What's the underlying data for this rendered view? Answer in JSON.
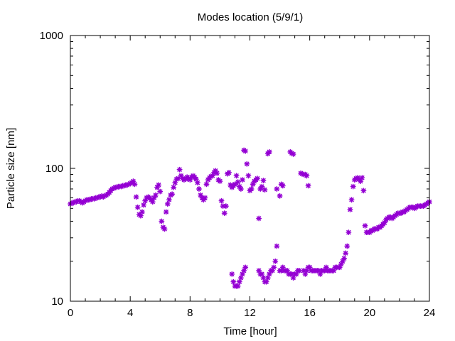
{
  "chart_data": {
    "type": "scatter",
    "title": "Modes location (5/9/1)",
    "xlabel": "Time [hour]",
    "ylabel": "Particle size [nm]",
    "xlim": [
      0,
      24
    ],
    "ylim": [
      10,
      1000
    ],
    "yscale": "log",
    "grid": false,
    "legend": "none",
    "marker": "asterisk",
    "colors": {
      "series": "#9400d3",
      "axis": "#000000",
      "background": "#ffffff"
    },
    "x_ticks": [
      "0",
      "4",
      "8",
      "12",
      "16",
      "20",
      "24"
    ],
    "y_ticks": [
      "10",
      "100",
      "1000"
    ],
    "series": [
      {
        "points": [
          [
            0.0,
            54
          ],
          [
            0.1,
            55
          ],
          [
            0.2,
            55
          ],
          [
            0.3,
            56
          ],
          [
            0.4,
            56
          ],
          [
            0.5,
            57
          ],
          [
            0.6,
            57
          ],
          [
            0.7,
            56
          ],
          [
            0.8,
            55
          ],
          [
            0.9,
            56
          ],
          [
            1.0,
            57
          ],
          [
            1.1,
            58
          ],
          [
            1.2,
            58
          ],
          [
            1.3,
            58
          ],
          [
            1.4,
            59
          ],
          [
            1.5,
            59
          ],
          [
            1.6,
            59
          ],
          [
            1.7,
            60
          ],
          [
            1.8,
            60
          ],
          [
            1.9,
            61
          ],
          [
            2.0,
            61
          ],
          [
            2.1,
            62
          ],
          [
            2.2,
            61
          ],
          [
            2.3,
            62
          ],
          [
            2.4,
            63
          ],
          [
            2.5,
            64
          ],
          [
            2.6,
            66
          ],
          [
            2.7,
            68
          ],
          [
            2.8,
            70
          ],
          [
            2.9,
            71
          ],
          [
            3.0,
            72
          ],
          [
            3.1,
            72
          ],
          [
            3.2,
            73
          ],
          [
            3.3,
            73
          ],
          [
            3.4,
            73
          ],
          [
            3.5,
            74
          ],
          [
            3.6,
            74
          ],
          [
            3.7,
            75
          ],
          [
            3.8,
            75
          ],
          [
            3.9,
            76
          ],
          [
            4.0,
            77
          ],
          [
            4.1,
            78
          ],
          [
            4.2,
            80
          ],
          [
            4.3,
            76
          ],
          [
            4.4,
            61
          ],
          [
            4.5,
            51
          ],
          [
            4.6,
            45
          ],
          [
            4.7,
            44
          ],
          [
            4.8,
            47
          ],
          [
            4.9,
            53
          ],
          [
            5.0,
            57
          ],
          [
            5.1,
            60
          ],
          [
            5.2,
            61
          ],
          [
            5.3,
            60
          ],
          [
            5.4,
            58
          ],
          [
            5.5,
            56
          ],
          [
            5.6,
            60
          ],
          [
            5.7,
            63
          ],
          [
            5.8,
            72
          ],
          [
            5.9,
            75
          ],
          [
            6.0,
            67
          ],
          [
            6.1,
            40
          ],
          [
            6.2,
            36
          ],
          [
            6.3,
            35
          ],
          [
            6.4,
            47
          ],
          [
            6.5,
            54
          ],
          [
            6.6,
            58
          ],
          [
            6.7,
            63
          ],
          [
            6.8,
            64
          ],
          [
            6.9,
            72
          ],
          [
            7.0,
            78
          ],
          [
            7.1,
            83
          ],
          [
            7.2,
            84
          ],
          [
            7.3,
            98
          ],
          [
            7.4,
            88
          ],
          [
            7.5,
            84
          ],
          [
            7.6,
            82
          ],
          [
            7.7,
            83
          ],
          [
            7.8,
            86
          ],
          [
            7.9,
            84
          ],
          [
            8.0,
            82
          ],
          [
            8.1,
            86
          ],
          [
            8.2,
            88
          ],
          [
            8.3,
            86
          ],
          [
            8.4,
            83
          ],
          [
            8.5,
            78
          ],
          [
            8.6,
            70
          ],
          [
            8.7,
            63
          ],
          [
            8.8,
            60
          ],
          [
            8.9,
            58
          ],
          [
            9.0,
            60
          ],
          [
            9.1,
            76
          ],
          [
            9.2,
            82
          ],
          [
            9.3,
            85
          ],
          [
            9.4,
            87
          ],
          [
            9.5,
            88
          ],
          [
            9.6,
            93
          ],
          [
            9.7,
            96
          ],
          [
            9.8,
            92
          ],
          [
            9.9,
            82
          ],
          [
            10.0,
            80
          ],
          [
            10.1,
            57
          ],
          [
            10.2,
            52
          ],
          [
            10.3,
            46
          ],
          [
            10.4,
            52
          ],
          [
            10.5,
            91
          ],
          [
            10.6,
            93
          ],
          [
            10.7,
            75
          ],
          [
            10.8,
            72
          ],
          [
            10.9,
            74
          ],
          [
            11.0,
            76
          ],
          [
            11.1,
            88
          ],
          [
            11.2,
            79
          ],
          [
            11.3,
            73
          ],
          [
            11.4,
            70
          ],
          [
            11.5,
            82
          ],
          [
            11.6,
            137
          ],
          [
            11.7,
            135
          ],
          [
            11.8,
            108
          ],
          [
            11.9,
            88
          ],
          [
            12.0,
            68
          ],
          [
            12.1,
            70
          ],
          [
            12.2,
            76
          ],
          [
            12.3,
            80
          ],
          [
            12.4,
            82
          ],
          [
            12.5,
            84
          ],
          [
            12.6,
            42
          ],
          [
            12.7,
            70
          ],
          [
            12.8,
            73
          ],
          [
            12.9,
            81
          ],
          [
            13.0,
            69
          ],
          [
            13.2,
            129
          ],
          [
            13.3,
            133
          ],
          [
            13.8,
            70
          ],
          [
            14.0,
            62
          ],
          [
            14.1,
            76
          ],
          [
            14.2,
            74
          ],
          [
            14.7,
            133
          ],
          [
            14.8,
            130
          ],
          [
            14.9,
            128
          ],
          [
            15.4,
            92
          ],
          [
            15.5,
            91
          ],
          [
            15.6,
            90
          ],
          [
            15.7,
            90
          ],
          [
            15.8,
            88
          ],
          [
            15.9,
            74
          ],
          [
            10.8,
            16
          ],
          [
            10.9,
            14
          ],
          [
            11.0,
            13
          ],
          [
            11.1,
            13
          ],
          [
            11.2,
            13
          ],
          [
            11.3,
            14
          ],
          [
            11.4,
            15
          ],
          [
            11.5,
            16
          ],
          [
            11.6,
            17
          ],
          [
            11.7,
            18
          ],
          [
            12.6,
            17
          ],
          [
            12.7,
            16
          ],
          [
            12.8,
            16
          ],
          [
            12.9,
            15
          ],
          [
            13.0,
            14
          ],
          [
            13.1,
            14
          ],
          [
            13.2,
            15
          ],
          [
            13.3,
            16
          ],
          [
            13.4,
            17
          ],
          [
            13.5,
            17
          ],
          [
            13.6,
            18
          ],
          [
            13.7,
            20
          ],
          [
            13.8,
            26
          ],
          [
            14.0,
            17
          ],
          [
            14.1,
            17
          ],
          [
            14.2,
            18
          ],
          [
            14.3,
            17
          ],
          [
            14.4,
            17
          ],
          [
            14.5,
            17
          ],
          [
            14.6,
            16
          ],
          [
            14.7,
            16
          ],
          [
            14.8,
            16
          ],
          [
            14.9,
            15
          ],
          [
            15.0,
            16
          ],
          [
            15.1,
            16
          ],
          [
            15.2,
            17
          ],
          [
            15.3,
            17
          ],
          [
            15.6,
            17
          ],
          [
            15.7,
            16
          ],
          [
            15.8,
            17
          ],
          [
            15.9,
            18
          ],
          [
            16.0,
            18
          ],
          [
            16.1,
            17
          ],
          [
            16.2,
            17
          ],
          [
            16.3,
            17
          ],
          [
            16.4,
            17
          ],
          [
            16.5,
            17
          ],
          [
            16.6,
            17
          ],
          [
            16.7,
            16
          ],
          [
            16.8,
            17
          ],
          [
            16.9,
            17
          ],
          [
            17.0,
            17
          ],
          [
            17.1,
            18
          ],
          [
            17.2,
            17
          ],
          [
            17.3,
            17
          ],
          [
            17.4,
            17
          ],
          [
            17.5,
            17
          ],
          [
            17.6,
            17
          ],
          [
            17.7,
            18
          ],
          [
            17.8,
            18
          ],
          [
            17.9,
            18
          ],
          [
            18.0,
            18
          ],
          [
            18.1,
            19
          ],
          [
            18.2,
            20
          ],
          [
            18.3,
            21
          ],
          [
            18.4,
            23
          ],
          [
            18.5,
            26
          ],
          [
            18.6,
            33
          ],
          [
            18.7,
            49
          ],
          [
            18.8,
            58
          ],
          [
            18.9,
            73
          ],
          [
            19.0,
            82
          ],
          [
            19.1,
            84
          ],
          [
            19.2,
            85
          ],
          [
            19.3,
            83
          ],
          [
            19.4,
            80
          ],
          [
            19.5,
            85
          ],
          [
            19.6,
            68
          ],
          [
            19.7,
            37
          ],
          [
            19.8,
            33
          ],
          [
            19.9,
            33
          ],
          [
            20.0,
            33
          ],
          [
            20.1,
            34
          ],
          [
            20.2,
            34
          ],
          [
            20.3,
            35
          ],
          [
            20.4,
            35
          ],
          [
            20.5,
            35
          ],
          [
            20.6,
            36
          ],
          [
            20.7,
            36
          ],
          [
            20.8,
            37
          ],
          [
            20.9,
            38
          ],
          [
            21.0,
            39
          ],
          [
            21.1,
            41
          ],
          [
            21.2,
            42
          ],
          [
            21.3,
            43
          ],
          [
            21.4,
            43
          ],
          [
            21.5,
            42
          ],
          [
            21.6,
            43
          ],
          [
            21.7,
            44
          ],
          [
            21.8,
            45
          ],
          [
            21.9,
            46
          ],
          [
            22.0,
            46
          ],
          [
            22.1,
            46
          ],
          [
            22.2,
            47
          ],
          [
            22.3,
            47
          ],
          [
            22.4,
            48
          ],
          [
            22.5,
            49
          ],
          [
            22.6,
            50
          ],
          [
            22.7,
            51
          ],
          [
            22.8,
            51
          ],
          [
            22.9,
            51
          ],
          [
            23.0,
            50
          ],
          [
            23.1,
            51
          ],
          [
            23.2,
            52
          ],
          [
            23.3,
            52
          ],
          [
            23.4,
            52
          ],
          [
            23.5,
            52
          ],
          [
            23.6,
            52
          ],
          [
            23.7,
            53
          ],
          [
            23.8,
            54
          ],
          [
            23.9,
            55
          ],
          [
            24.0,
            56
          ]
        ]
      }
    ]
  }
}
